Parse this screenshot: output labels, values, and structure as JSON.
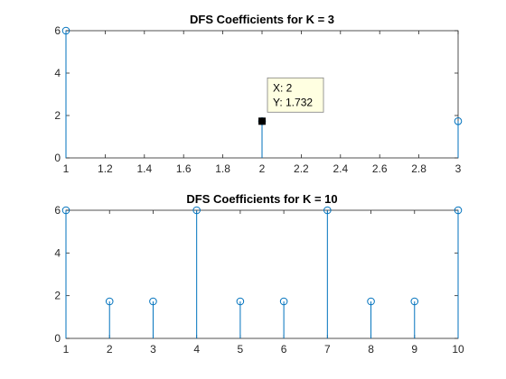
{
  "window": {
    "background": "#ffffff"
  },
  "chart_data": [
    {
      "type": "stem",
      "title": "DFS Coefficients for K = 3",
      "xlabel": "",
      "ylabel": "",
      "xlim": [
        1,
        3
      ],
      "ylim": [
        0,
        6
      ],
      "xticks": [
        1,
        1.2,
        1.4,
        1.6,
        1.8,
        2,
        2.2,
        2.4,
        2.6,
        2.8,
        3
      ],
      "xtick_labels": [
        "1",
        "1.2",
        "1.4",
        "1.6",
        "1.8",
        "2",
        "2.2",
        "2.4",
        "2.6",
        "2.8",
        "3"
      ],
      "yticks": [
        0,
        2,
        4,
        6
      ],
      "ytick_labels": [
        "0",
        "2",
        "4",
        "6"
      ],
      "grid": false,
      "color": "#0072bd",
      "x": [
        1,
        2,
        3
      ],
      "y": [
        6,
        1.732,
        1.732
      ],
      "datatip": {
        "x": 2,
        "y": 1.732,
        "label_x": "X: 2",
        "label_y": "Y: 1.732"
      }
    },
    {
      "type": "stem",
      "title": "DFS Coefficients for K = 10",
      "xlabel": "",
      "ylabel": "",
      "xlim": [
        1,
        10
      ],
      "ylim": [
        0,
        6
      ],
      "xticks": [
        1,
        2,
        3,
        4,
        5,
        6,
        7,
        8,
        9,
        10
      ],
      "xtick_labels": [
        "1",
        "2",
        "3",
        "4",
        "5",
        "6",
        "7",
        "8",
        "9",
        "10"
      ],
      "yticks": [
        0,
        2,
        4,
        6
      ],
      "ytick_labels": [
        "0",
        "2",
        "4",
        "6"
      ],
      "grid": false,
      "color": "#0072bd",
      "x": [
        1,
        2,
        3,
        4,
        5,
        6,
        7,
        8,
        9,
        10
      ],
      "y": [
        6,
        1.732,
        1.732,
        6,
        1.732,
        1.732,
        6,
        1.732,
        1.732,
        6
      ]
    }
  ]
}
